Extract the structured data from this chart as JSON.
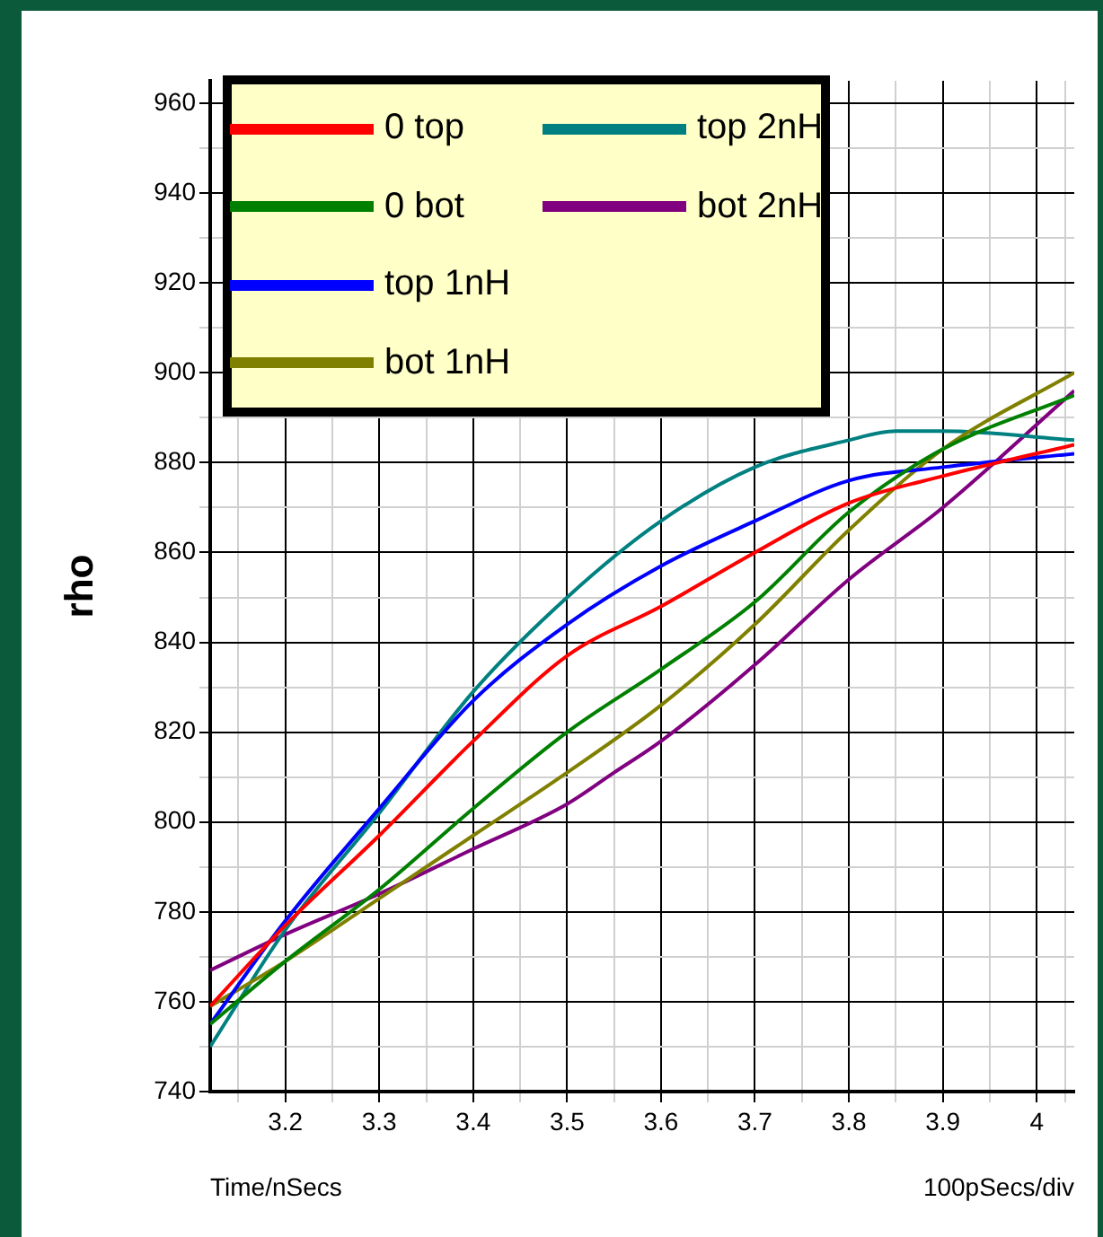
{
  "chart_data": {
    "type": "line",
    "xlabel": "Time/nSecs",
    "ylabel": "rho",
    "annotations": [
      "100pSecs/div"
    ],
    "x": [
      3.12,
      3.2,
      3.3,
      3.4,
      3.5,
      3.6,
      3.7,
      3.8,
      3.9,
      4.04
    ],
    "series": [
      {
        "name": "0 top",
        "color": "#ff0000",
        "values": [
          759,
          777,
          797,
          818,
          837,
          848,
          860,
          871,
          877,
          884
        ]
      },
      {
        "name": "0 bot",
        "color": "#008000",
        "values": [
          755,
          769,
          785,
          803,
          820,
          834,
          849,
          869,
          883,
          895
        ]
      },
      {
        "name": "top 1nH",
        "color": "#0000ff",
        "values": [
          755,
          778,
          803,
          827,
          844,
          857,
          867,
          876,
          879,
          882
        ]
      },
      {
        "name": "bot 1nH",
        "color": "#808000",
        "values": [
          759,
          769,
          783,
          797,
          811,
          826,
          844,
          865,
          883,
          900
        ]
      },
      {
        "name": "top 2nH",
        "color": "#008080",
        "x": [
          3.12,
          3.2,
          3.3,
          3.4,
          3.5,
          3.6,
          3.7,
          3.8,
          3.85,
          3.9,
          4.04
        ],
        "values": [
          750,
          776,
          802,
          829,
          850,
          867,
          879,
          885,
          887,
          887,
          885
        ]
      },
      {
        "name": "bot 2nH",
        "color": "#800080",
        "x": [
          3.12,
          3.2,
          3.3,
          3.4,
          3.5,
          3.55,
          3.6,
          3.7,
          3.8,
          3.9,
          4.04
        ],
        "values": [
          767,
          775,
          784,
          794,
          804,
          811,
          818,
          835,
          854,
          870,
          896
        ]
      }
    ],
    "xlim": [
      3.12,
      4.04
    ],
    "xticks": [
      {
        "value": 3.15,
        "label": null
      },
      3.2,
      {
        "value": 3.25,
        "label": null
      },
      3.3,
      {
        "value": 3.35,
        "label": null
      },
      3.4,
      {
        "value": 3.45,
        "label": null
      },
      3.5,
      {
        "value": 3.55,
        "label": null
      },
      3.6,
      {
        "value": 3.65,
        "label": null
      },
      3.7,
      {
        "value": 3.75,
        "label": null
      },
      3.8,
      {
        "value": 3.85,
        "label": null
      },
      3.9,
      {
        "value": 3.95,
        "label": null
      },
      4,
      {
        "value": 4.03,
        "label": null
      }
    ],
    "ylim": [
      740,
      965
    ],
    "yticks": [
      740,
      {
        "value": 750,
        "label": null
      },
      760,
      {
        "value": 770,
        "label": null
      },
      780,
      {
        "value": 790,
        "label": null
      },
      800,
      {
        "value": 810,
        "label": null
      },
      820,
      {
        "value": 830,
        "label": null
      },
      840,
      {
        "value": 850,
        "label": null
      },
      860,
      {
        "value": 870,
        "label": null
      },
      880,
      {
        "value": 890,
        "label": null
      },
      900,
      {
        "value": 910,
        "label": null
      },
      920,
      {
        "value": 930,
        "label": null
      },
      940,
      {
        "value": 950,
        "label": null
      },
      960
    ],
    "grid": true,
    "legend": "top left",
    "marker": "none",
    "line_style": "solid"
  }
}
